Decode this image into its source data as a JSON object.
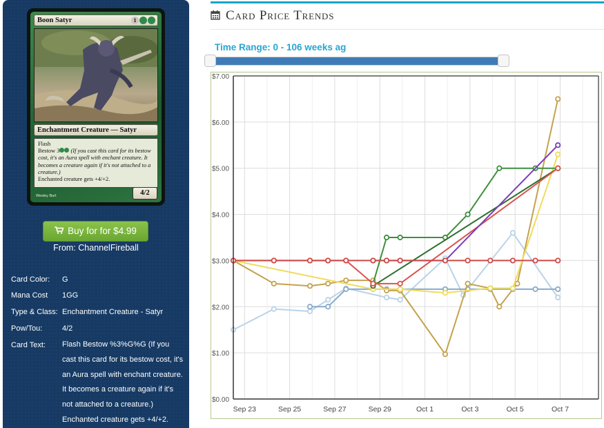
{
  "card": {
    "name": "Boon Satyr",
    "mana_cost_symbols": [
      "1",
      "G",
      "G"
    ],
    "type_line": "Enchantment Creature — Satyr",
    "rules_keyword": "Flash",
    "bestow_prefix": "Bestow",
    "bestow_cost_symbols": [
      "3",
      "G",
      "G"
    ],
    "bestow_reminder": "(If you cast this card for its bestow cost, it's an Aura spell with enchant creature. It becomes a creature again if it's not attached to a creature.)",
    "enchanted_text": "Enchanted creature gets +4/+2.",
    "power_toughness": "4/2",
    "artist": "Wesley Burt"
  },
  "buy": {
    "label": "Buy for for $4.99",
    "vendor": "From: ChannelFireball",
    "icon": "cart-icon"
  },
  "attributes": [
    {
      "label": "Card Color:",
      "value": "G"
    },
    {
      "label": "Mana Cost",
      "value": "1GG"
    },
    {
      "label": "Type & Class:",
      "value": "Enchantment Creature - Satyr"
    },
    {
      "label": "Pow/Tou:",
      "value": "4/2"
    },
    {
      "label": "Card Text:",
      "value": "Flash Bestow %3%G%G (If you cast this card for its bestow cost, it's an Aura spell with enchant creature. It becomes a creature again if it's not attached to a creature.) Enchanted creature gets +4/+2."
    }
  ],
  "page": {
    "title": "Card Price Trends",
    "title_icon": "calendar-icon",
    "accent": "#1ba3c6",
    "range_label": "Time Range: 0 - 106 weeks ag"
  },
  "slider": {
    "min": 0,
    "max": 106,
    "low": 0,
    "high": 106
  },
  "chart_data": {
    "type": "line",
    "x_ticks": [
      "Sep 23",
      "Sep 25",
      "Sep 27",
      "Sep 29",
      "Oct 1",
      "Oct 3",
      "Oct 5",
      "Oct 7"
    ],
    "y_ticks": [
      "$0.00",
      "$1.00",
      "$2.00",
      "$3.00",
      "$4.00",
      "$5.00",
      "$6.00",
      "$7.00"
    ],
    "xlim": [
      22.5,
      38.7
    ],
    "ylim": [
      0,
      7
    ],
    "grid": true,
    "series": [
      {
        "color": "#b9d3e8",
        "points": [
          [
            22.5,
            1.5
          ],
          [
            24.3,
            1.95
          ],
          [
            25.9,
            1.9
          ],
          [
            26.7,
            2.15
          ],
          [
            27.5,
            2.4
          ],
          [
            29.3,
            2.2
          ],
          [
            29.9,
            2.15
          ],
          [
            31.9,
            3.05
          ],
          [
            32.7,
            2.25
          ],
          [
            34.9,
            3.6
          ],
          [
            36.9,
            2.2
          ]
        ]
      },
      {
        "color": "#88aacb",
        "points": [
          [
            25.9,
            2.0
          ],
          [
            26.7,
            2.0
          ],
          [
            27.5,
            2.38
          ],
          [
            28.7,
            2.38
          ],
          [
            29.3,
            2.38
          ],
          [
            29.9,
            2.38
          ],
          [
            31.9,
            2.38
          ],
          [
            32.9,
            2.38
          ],
          [
            33.9,
            2.38
          ],
          [
            34.9,
            2.38
          ],
          [
            35.9,
            2.38
          ],
          [
            36.9,
            2.38
          ]
        ]
      },
      {
        "color": "#c4a24e",
        "points": [
          [
            22.5,
            3.0
          ],
          [
            24.3,
            2.5
          ],
          [
            25.9,
            2.45
          ],
          [
            26.7,
            2.5
          ],
          [
            27.5,
            2.57
          ],
          [
            28.7,
            2.57
          ],
          [
            29.3,
            2.35
          ],
          [
            29.9,
            2.35
          ],
          [
            31.9,
            0.97
          ],
          [
            32.9,
            2.5
          ],
          [
            33.9,
            2.4
          ],
          [
            34.3,
            2.0
          ],
          [
            35.1,
            2.5
          ],
          [
            36.9,
            6.5
          ]
        ]
      },
      {
        "color": "#f0db5c",
        "points": [
          [
            22.5,
            3.0
          ],
          [
            28.7,
            2.38
          ],
          [
            29.9,
            2.38
          ],
          [
            31.9,
            2.3
          ],
          [
            33.9,
            2.4
          ],
          [
            34.9,
            2.4
          ],
          [
            36.9,
            5.3
          ]
        ]
      },
      {
        "color": "#3e8e3e",
        "points": [
          [
            28.7,
            2.5
          ],
          [
            29.3,
            3.5
          ],
          [
            29.9,
            3.5
          ],
          [
            31.9,
            3.5
          ],
          [
            32.9,
            4.0
          ],
          [
            34.3,
            5.0
          ],
          [
            35.9,
            5.0
          ],
          [
            36.9,
            5.0
          ]
        ]
      },
      {
        "color": "#2e6e2e",
        "points": [
          [
            28.7,
            2.45
          ],
          [
            36.9,
            5.0
          ]
        ]
      },
      {
        "color": "#d9534f",
        "points": [
          [
            22.5,
            3.0
          ],
          [
            24.3,
            3.0
          ],
          [
            25.9,
            3.0
          ],
          [
            26.7,
            3.0
          ],
          [
            27.5,
            3.0
          ],
          [
            28.7,
            2.5
          ],
          [
            29.9,
            2.5
          ],
          [
            36.9,
            5.0
          ]
        ]
      },
      {
        "color": "#7b3db8",
        "points": [
          [
            28.7,
            3.0
          ],
          [
            29.3,
            3.0
          ],
          [
            29.9,
            3.0
          ],
          [
            31.9,
            3.0
          ],
          [
            36.9,
            5.5
          ]
        ]
      },
      {
        "color": "#cd4a47",
        "points": [
          [
            22.5,
            3.0
          ],
          [
            24.3,
            3.0
          ],
          [
            25.9,
            3.0
          ],
          [
            26.7,
            3.0
          ],
          [
            27.5,
            3.0
          ],
          [
            28.7,
            3.0
          ],
          [
            29.3,
            3.0
          ],
          [
            29.9,
            3.0
          ],
          [
            31.9,
            3.0
          ],
          [
            32.9,
            3.0
          ],
          [
            33.9,
            3.0
          ],
          [
            34.9,
            3.0
          ],
          [
            35.9,
            3.0
          ],
          [
            36.9,
            3.0
          ]
        ]
      }
    ]
  }
}
